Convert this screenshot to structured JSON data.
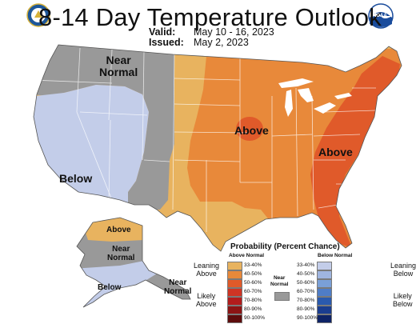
{
  "header": {
    "title": "8-14 Day Temperature Outlook",
    "valid_label": "Valid:",
    "valid_value": "May 10 - 16, 2023",
    "issued_label": "Issued:",
    "issued_value": "May 2, 2023",
    "left_logo_icon": "department-of-commerce-seal-icon",
    "right_logo_icon": "noaa-logo-icon",
    "noaa_text": "NOAA"
  },
  "map": {
    "labels": {
      "near_normal_west": "Near\nNormal",
      "below_west": "Below",
      "above_central": "Above",
      "above_east": "Above",
      "alaska_above": "Above",
      "alaska_near_normal": "Near\nNormal",
      "alaska_below": "Below",
      "alaska_near_normal_se": "Near\nNormal"
    },
    "regions": [
      {
        "name": "west-near-normal",
        "category": "Near Normal"
      },
      {
        "name": "southwest-below",
        "category": "Below",
        "probability": "33-40%"
      },
      {
        "name": "plains-above",
        "category": "Above",
        "probability": "33-40%"
      },
      {
        "name": "central-above",
        "category": "Above",
        "probability": "40-50%"
      },
      {
        "name": "east-above",
        "category": "Above",
        "probability": "50-60%"
      },
      {
        "name": "midwest-above-core",
        "category": "Above",
        "probability": "50-60%"
      },
      {
        "name": "alaska-north-above",
        "category": "Above",
        "probability": "33-40%"
      },
      {
        "name": "alaska-central-near-normal",
        "category": "Near Normal"
      },
      {
        "name": "alaska-south-below",
        "category": "Below",
        "probability": "33-40%"
      }
    ]
  },
  "legend": {
    "title": "Probability (Percent Chance)",
    "above_heading": "Above Normal",
    "below_heading": "Below Normal",
    "near_normal_label": "Near\nNormal",
    "leaning_above": "Leaning\nAbove",
    "likely_above": "Likely\nAbove",
    "leaning_below": "Leaning\nBelow",
    "likely_below": "Likely\nBelow",
    "above_levels": [
      {
        "label": "33-40%",
        "color": "#e8b35f"
      },
      {
        "label": "40-50%",
        "color": "#e8893a"
      },
      {
        "label": "50-60%",
        "color": "#e05a2a"
      },
      {
        "label": "60-70%",
        "color": "#cf3424"
      },
      {
        "label": "70-80%",
        "color": "#b21c1c"
      },
      {
        "label": "80-90%",
        "color": "#8c1414"
      },
      {
        "label": "90-100%",
        "color": "#5e0c0c"
      }
    ],
    "below_levels": [
      {
        "label": "33-40%",
        "color": "#c3cde9"
      },
      {
        "label": "40-50%",
        "color": "#9fb5e0"
      },
      {
        "label": "50-60%",
        "color": "#7aa0d8"
      },
      {
        "label": "60-70%",
        "color": "#4f7dc7"
      },
      {
        "label": "70-80%",
        "color": "#2a5aae"
      },
      {
        "label": "80-90%",
        "color": "#1a3d8f"
      },
      {
        "label": "90-100%",
        "color": "#0e2366"
      }
    ],
    "near_normal_color": "#999999"
  }
}
